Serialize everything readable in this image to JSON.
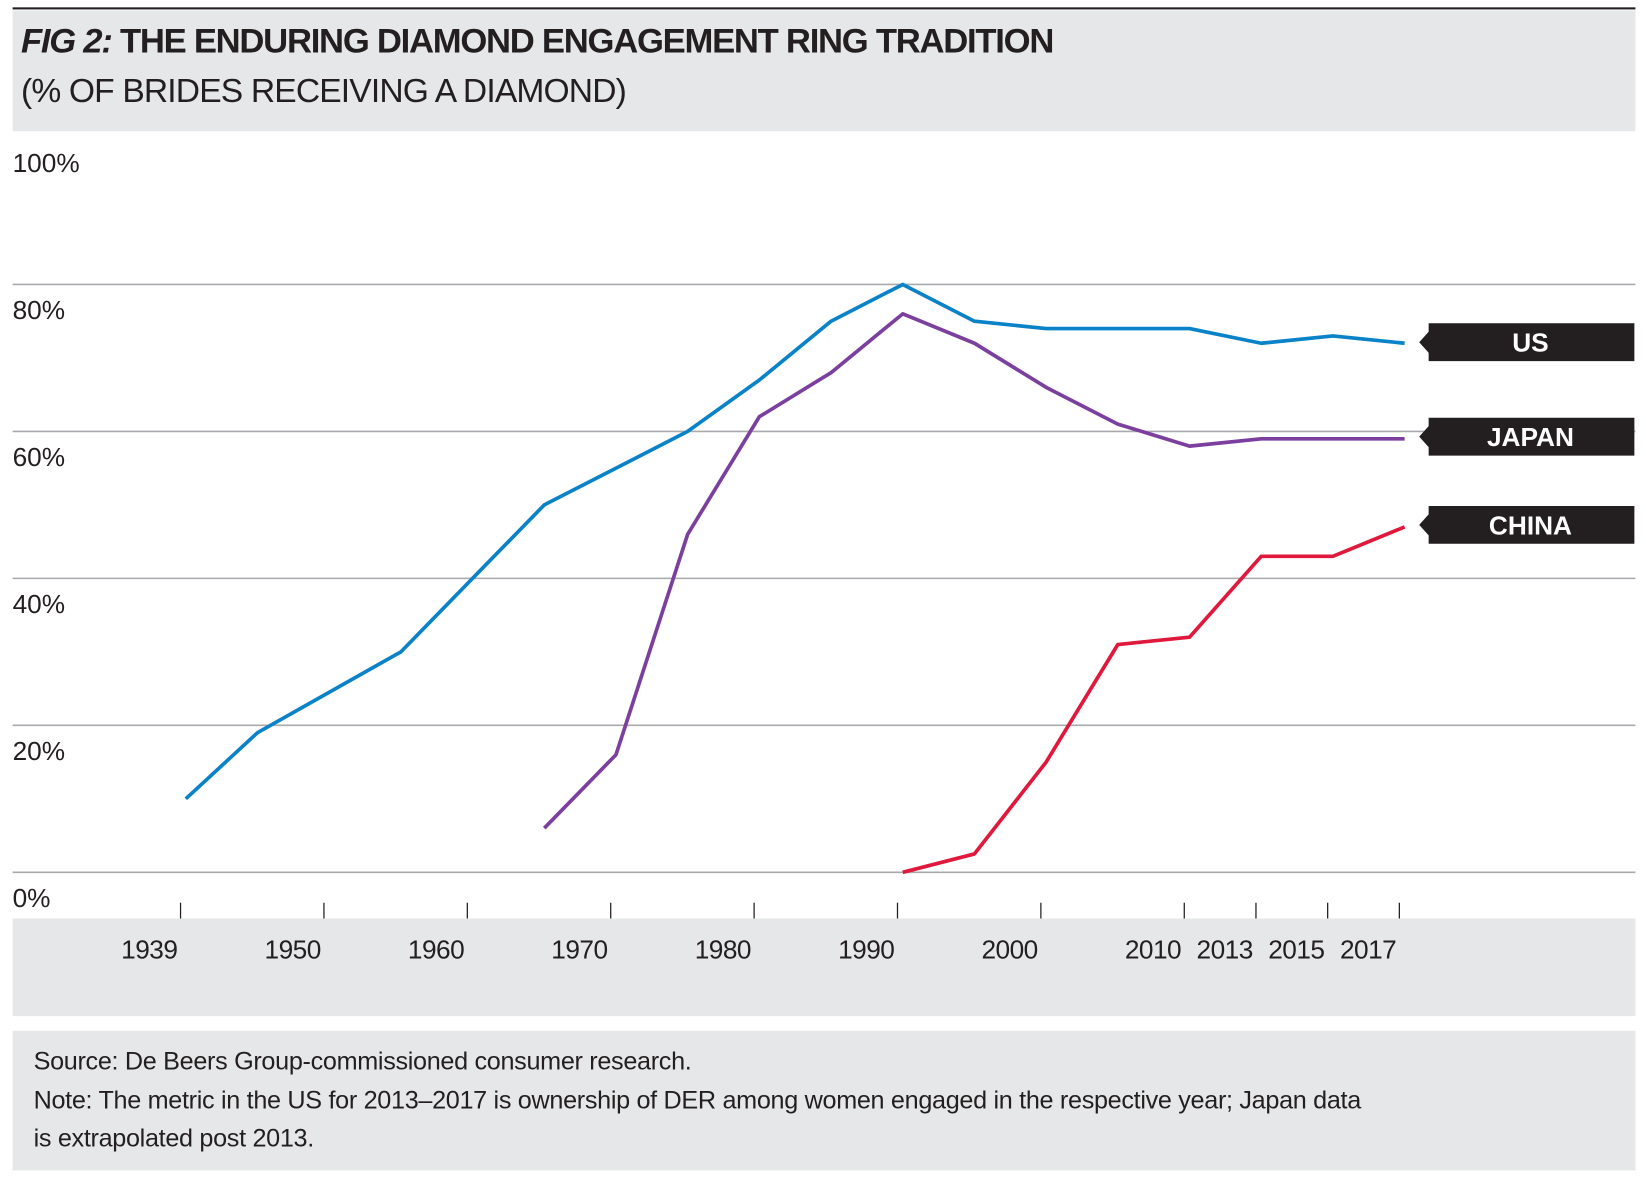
{
  "chart_data": {
    "type": "line",
    "title_prefix": "FIG 2:",
    "title": "THE ENDURING DIAMOND ENGAGEMENT RING TRADITION",
    "subtitle": "(% OF BRIDES RECEIVING A DIAMOND)",
    "ylim": [
      0,
      100
    ],
    "yticks": [
      "0%",
      "20%",
      "40%",
      "60%",
      "80%",
      "100%"
    ],
    "ytick_values": [
      0,
      20,
      40,
      60,
      80,
      100
    ],
    "x_slots": 18,
    "xticks": [
      {
        "label": "1939",
        "slot": 0
      },
      {
        "label": "1950",
        "slot": 2
      },
      {
        "label": "1960",
        "slot": 4
      },
      {
        "label": "1970",
        "slot": 6
      },
      {
        "label": "1980",
        "slot": 8
      },
      {
        "label": "1990",
        "slot": 10
      },
      {
        "label": "2000",
        "slot": 12
      },
      {
        "label": "2010",
        "slot": 14
      },
      {
        "label": "2013",
        "slot": 15
      },
      {
        "label": "2015",
        "slot": 16
      },
      {
        "label": "2017",
        "slot": 17
      }
    ],
    "grid": true,
    "series": [
      {
        "name": "US",
        "color": "#0a82c8",
        "points": [
          [
            0,
            10
          ],
          [
            1,
            19
          ],
          [
            3,
            30
          ],
          [
            5,
            50
          ],
          [
            7,
            60
          ],
          [
            8,
            67
          ],
          [
            9,
            75
          ],
          [
            10,
            80
          ],
          [
            11,
            75
          ],
          [
            12,
            74
          ],
          [
            13,
            74
          ],
          [
            14,
            74
          ],
          [
            15,
            72
          ],
          [
            16,
            73
          ],
          [
            17,
            72
          ]
        ]
      },
      {
        "name": "JAPAN",
        "color": "#7b3f9e",
        "points": [
          [
            5,
            6
          ],
          [
            6,
            16
          ],
          [
            7,
            46
          ],
          [
            8,
            62
          ],
          [
            9,
            68
          ],
          [
            10,
            76
          ],
          [
            11,
            72
          ],
          [
            12,
            66
          ],
          [
            13,
            61
          ],
          [
            14,
            58
          ],
          [
            15,
            59
          ],
          [
            16,
            59
          ],
          [
            17,
            59
          ]
        ]
      },
      {
        "name": "CHINA",
        "color": "#e0183c",
        "points": [
          [
            10,
            0
          ],
          [
            11,
            2.5
          ],
          [
            12,
            15
          ],
          [
            13,
            31
          ],
          [
            14,
            32
          ],
          [
            15,
            43
          ],
          [
            16,
            43
          ],
          [
            17,
            47
          ]
        ]
      }
    ],
    "label_box_color": "#231f20"
  },
  "footer": {
    "source": "Source: De Beers Group-commissioned consumer research.",
    "note_line1": "Note: The metric in the US for 2013–2017 is ownership of DER among women engaged in the respective year; Japan data",
    "note_line2": "is extrapolated post 2013."
  }
}
